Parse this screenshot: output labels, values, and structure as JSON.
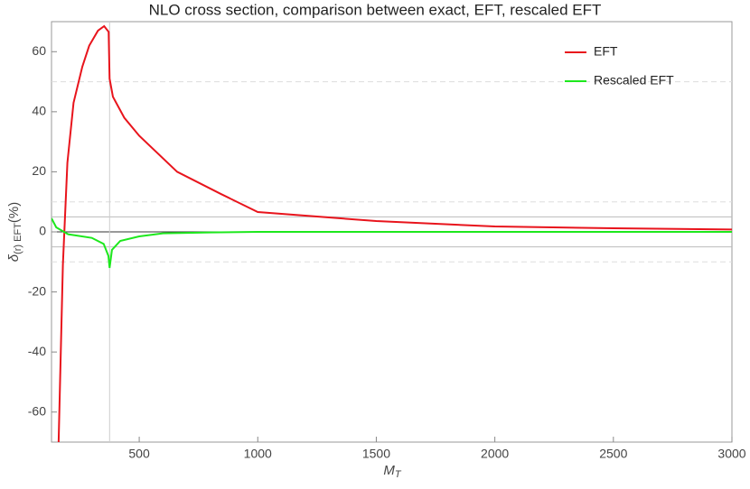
{
  "chart_data": {
    "type": "line",
    "title": "NLO cross section, comparison between exact, EFT, rescaled EFT",
    "xlabel": {
      "main": "M",
      "sub": "T"
    },
    "ylabel": {
      "main": "δ",
      "sub": "(r) EFT",
      "tail": "(%)"
    },
    "xlim": [
      130,
      3000
    ],
    "ylim": [
      -70,
      70
    ],
    "xticks": [
      500,
      1000,
      1500,
      2000,
      2500,
      3000
    ],
    "yticks": [
      -60,
      -40,
      -20,
      0,
      20,
      40,
      60
    ],
    "legend": "top-right",
    "reference_lines": [
      {
        "y": 50,
        "style": "dashed"
      },
      {
        "y": 10,
        "style": "dashed"
      },
      {
        "y": -10,
        "style": "dashed"
      },
      {
        "y": 5,
        "style": "solid"
      },
      {
        "y": -5,
        "style": "solid"
      },
      {
        "y": 0,
        "style": "axis"
      }
    ],
    "vline": 375,
    "series": [
      {
        "name": "EFT",
        "color": "#e8141c",
        "x": [
          160,
          178,
          197,
          223,
          260,
          289,
          326,
          352,
          371,
          375,
          389,
          437,
          500,
          660,
          845,
          1000,
          1500,
          2000,
          2500,
          3000
        ],
        "values": [
          -70,
          -11,
          23,
          43,
          55,
          62,
          67,
          68.5,
          66.6,
          51,
          45,
          38,
          32,
          20,
          12.6,
          6.6,
          3.6,
          1.8,
          1.2,
          0.8
        ]
      },
      {
        "name": "Rescaled EFT",
        "color": "#1de81d",
        "x": [
          130,
          150,
          200,
          300,
          350,
          370,
          375,
          385,
          420,
          500,
          600,
          800,
          1000,
          3000
        ],
        "values": [
          4.5,
          1.5,
          -0.8,
          -2,
          -4,
          -8,
          -12,
          -6,
          -3,
          -1.5,
          -0.5,
          -0.2,
          0,
          0
        ]
      }
    ]
  }
}
